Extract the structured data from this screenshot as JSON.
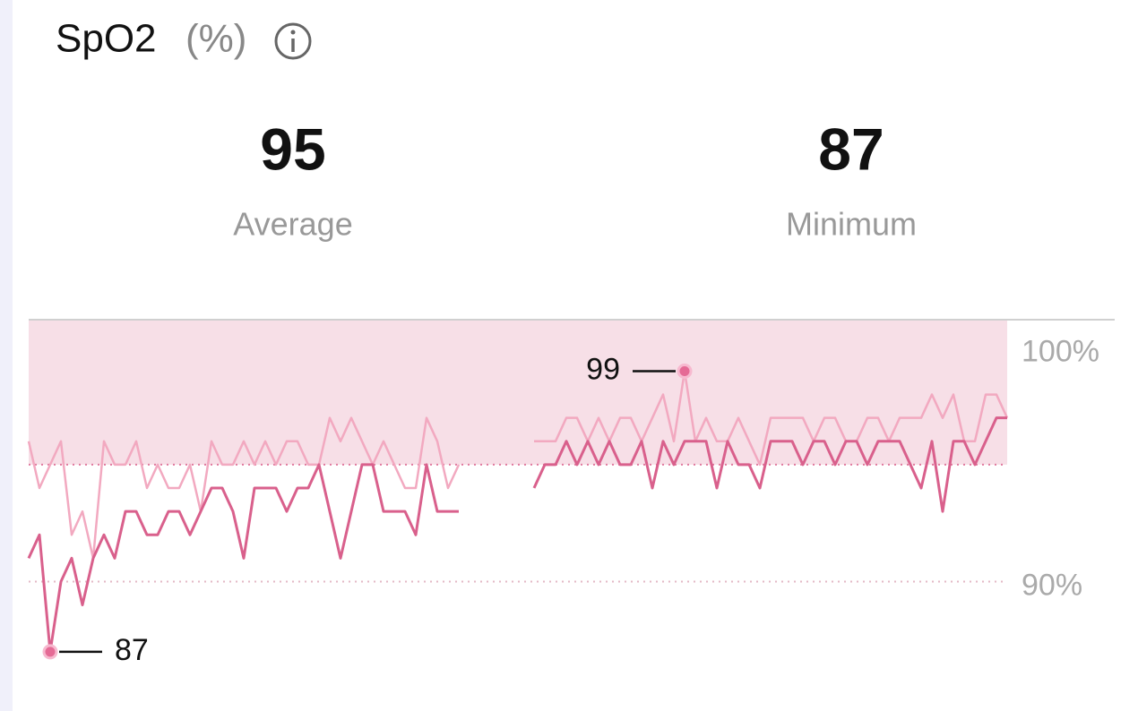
{
  "chart_data": {
    "type": "line",
    "title": "SpO2",
    "unit": "(%)",
    "ylim": [
      85.5,
      101.2
    ],
    "yticks": [
      {
        "value": 90,
        "label": "90%"
      },
      {
        "value": 100,
        "label": "100%"
      }
    ],
    "band": [
      95,
      101.2
    ],
    "band_color": "#f7dfe7",
    "series": [
      {
        "color": "#f2a9c0",
        "values": [
          96,
          94,
          95,
          96,
          92,
          93,
          91,
          96,
          95,
          95,
          96,
          94,
          95,
          94,
          94,
          95,
          93,
          96,
          95,
          95,
          96,
          95,
          96,
          95,
          96,
          96,
          95,
          95,
          97,
          96,
          97,
          96,
          95,
          96,
          95,
          94,
          94,
          97,
          96,
          94,
          95,
          null,
          null,
          null,
          null,
          null,
          null,
          96,
          96,
          96,
          97,
          97,
          96,
          97,
          96,
          97,
          97,
          96,
          97,
          98,
          96,
          99,
          96,
          97,
          96,
          96,
          97,
          96,
          95,
          97,
          97,
          97,
          97,
          96,
          97,
          97,
          96,
          96,
          97,
          97,
          96,
          97,
          97,
          97,
          98,
          97,
          98,
          96,
          96,
          98,
          98,
          97
        ]
      },
      {
        "color": "#d9608c",
        "values": [
          91,
          92,
          87,
          90,
          91,
          89,
          91,
          92,
          91,
          93,
          93,
          92,
          92,
          93,
          93,
          92,
          93,
          94,
          94,
          93,
          91,
          94,
          94,
          94,
          93,
          94,
          94,
          95,
          93,
          91,
          93,
          95,
          95,
          93,
          93,
          93,
          92,
          95,
          93,
          93,
          93,
          null,
          null,
          null,
          null,
          null,
          null,
          94,
          95,
          95,
          96,
          95,
          96,
          95,
          96,
          95,
          95,
          96,
          94,
          96,
          95,
          96,
          96,
          96,
          94,
          96,
          95,
          95,
          94,
          96,
          96,
          96,
          95,
          96,
          96,
          95,
          96,
          96,
          95,
          96,
          96,
          96,
          95,
          94,
          96,
          93,
          96,
          96,
          95,
          96,
          97,
          97
        ]
      }
    ]
  },
  "stats": [
    {
      "value": 95,
      "label": "Average"
    },
    {
      "value": 87,
      "label": "Minimum"
    }
  ]
}
